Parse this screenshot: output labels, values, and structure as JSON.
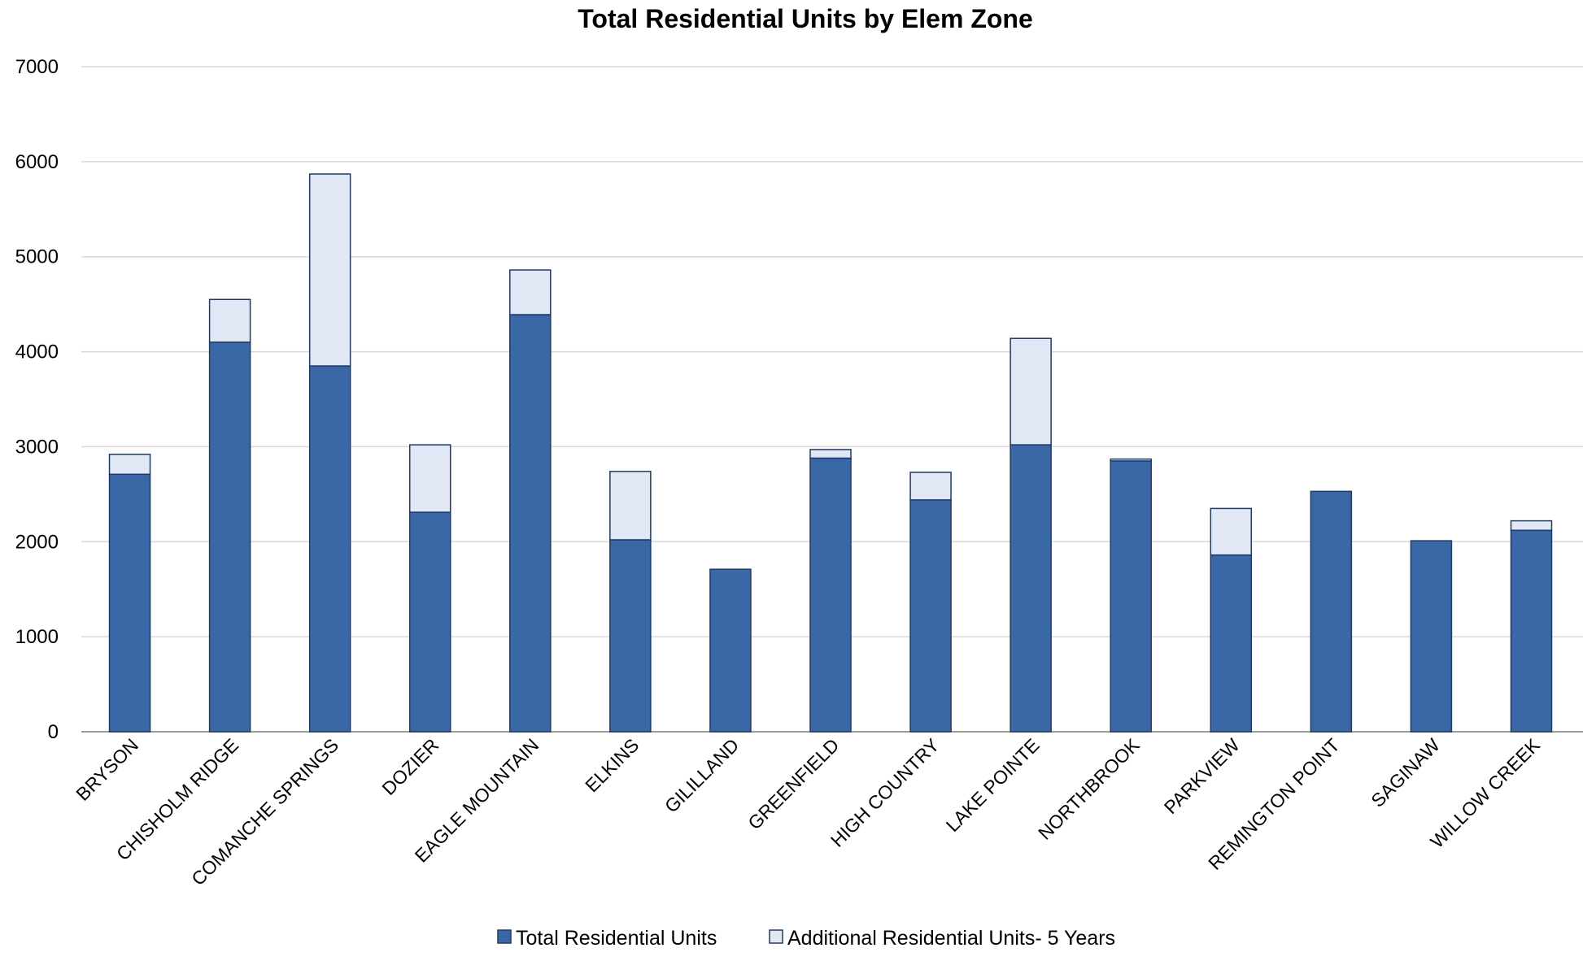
{
  "chart_data": {
    "type": "bar",
    "stacked": true,
    "title": "Total Residential Units by Elem Zone",
    "xlabel": "",
    "ylabel": "",
    "ylim": [
      0,
      7000
    ],
    "yticks": [
      "0",
      "1000",
      "2000",
      "3000",
      "4000",
      "5000",
      "6000",
      "7000"
    ],
    "grid": true,
    "legend_position": "bottom",
    "categories": [
      "BRYSON",
      "CHISHOLM RIDGE",
      "COMANCHE SPRINGS",
      "DOZIER",
      "EAGLE MOUNTAIN",
      "ELKINS",
      "GILILLAND",
      "GREENFIELD",
      "HIGH COUNTRY",
      "LAKE POINTE",
      "NORTHBROOK",
      "PARKVIEW",
      "REMINGTON POINT",
      "SAGINAW",
      "WILLOW CREEK"
    ],
    "series": [
      {
        "name": "Total Residential Units",
        "color": "#3a68a6",
        "values": [
          2710,
          4100,
          3850,
          2310,
          4390,
          2020,
          1710,
          2880,
          2440,
          3020,
          2850,
          1860,
          2530,
          2010,
          2120
        ]
      },
      {
        "name": "Additional Residential Units- 5 Years",
        "color": "#e1e7f5",
        "values": [
          210,
          450,
          2020,
          710,
          470,
          720,
          0,
          90,
          290,
          1120,
          20,
          490,
          0,
          0,
          100
        ]
      }
    ]
  }
}
